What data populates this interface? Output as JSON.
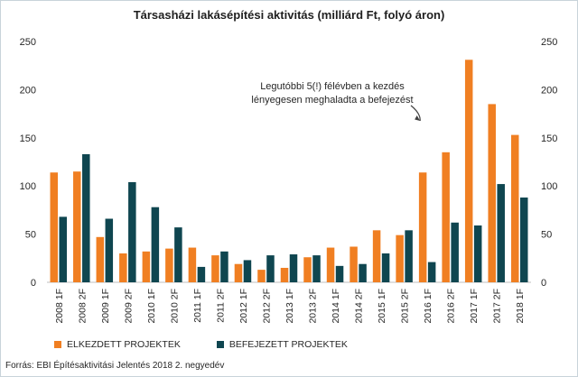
{
  "chart_data": {
    "type": "bar",
    "title": "Társasházi  lakásépítési  aktivitás  (milliárd  Ft, folyó áron)",
    "categories": [
      "2008 1F",
      "2008 2F",
      "2009 1F",
      "2009 2F",
      "2010 1F",
      "2010 2F",
      "2011 1F",
      "2011 2F",
      "2012 1F",
      "2012 2F",
      "2013 1F",
      "2013 2F",
      "2014 1F",
      "2014 2F",
      "2015 1F",
      "2015 2F",
      "2016 1F",
      "2016 2F",
      "2017 1F",
      "2017 2F",
      "2018 1F"
    ],
    "series": [
      {
        "name": "ELKEZDETT PROJEKTEK",
        "color": "#f07f22",
        "values": [
          114,
          115,
          47,
          30,
          32,
          35,
          36,
          28,
          19,
          13,
          15,
          26,
          36,
          37,
          54,
          49,
          114,
          135,
          231,
          185,
          153
        ]
      },
      {
        "name": "BEFEJEZETT PROJEKTEK",
        "color": "#0f4650",
        "values": [
          68,
          133,
          66,
          104,
          78,
          57,
          16,
          32,
          23,
          28,
          29,
          28,
          17,
          19,
          30,
          54,
          21,
          62,
          59,
          102,
          88
        ]
      }
    ],
    "ylim": [
      0,
      250
    ],
    "yticks": [
      0,
      50,
      100,
      150,
      200,
      250
    ],
    "y_axis_sides": "left and right",
    "grid": false,
    "legend_position": "bottom-left",
    "annotation": {
      "lines": [
        "Legutóbbi 5(!) félévben a kezdés",
        "lényegesen meghaladta a befejezést"
      ],
      "arrow_target_category": "2016 1F"
    }
  },
  "footer": {
    "source": "Forrás: EBI Építésaktivitási Jelentés 2018 2. negyedév"
  }
}
